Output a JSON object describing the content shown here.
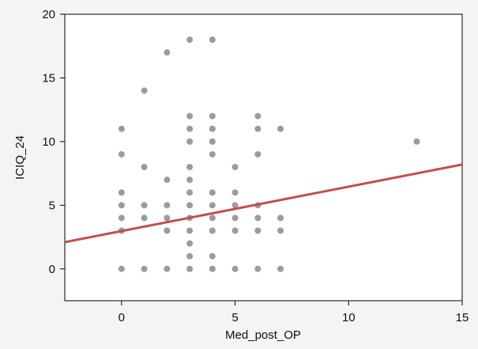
{
  "chart_data": {
    "type": "scatter",
    "title": "",
    "xlabel": "Med_post_OP",
    "ylabel": "ICIQ_24",
    "xlim": [
      -2.5,
      15
    ],
    "ylim": [
      -2.5,
      20
    ],
    "xticks": [
      0,
      5,
      10,
      15
    ],
    "yticks": [
      0,
      5,
      10,
      15,
      20
    ],
    "grid": false,
    "colors": {
      "points": "#9b9b9b",
      "fit_line": "#c0504d",
      "plot_bg": "#ffffff",
      "axis": "#000000"
    },
    "points": [
      {
        "x": 0,
        "y": 0
      },
      {
        "x": 0,
        "y": 3
      },
      {
        "x": 0,
        "y": 4
      },
      {
        "x": 0,
        "y": 5
      },
      {
        "x": 0,
        "y": 6
      },
      {
        "x": 0,
        "y": 9
      },
      {
        "x": 0,
        "y": 11
      },
      {
        "x": 1,
        "y": 0
      },
      {
        "x": 1,
        "y": 4
      },
      {
        "x": 1,
        "y": 5
      },
      {
        "x": 1,
        "y": 8
      },
      {
        "x": 1,
        "y": 14
      },
      {
        "x": 2,
        "y": 0
      },
      {
        "x": 2,
        "y": 3
      },
      {
        "x": 2,
        "y": 4
      },
      {
        "x": 2,
        "y": 5
      },
      {
        "x": 2,
        "y": 7
      },
      {
        "x": 2,
        "y": 17
      },
      {
        "x": 3,
        "y": 0
      },
      {
        "x": 3,
        "y": 1
      },
      {
        "x": 3,
        "y": 2
      },
      {
        "x": 3,
        "y": 3
      },
      {
        "x": 3,
        "y": 4
      },
      {
        "x": 3,
        "y": 5
      },
      {
        "x": 3,
        "y": 6
      },
      {
        "x": 3,
        "y": 7
      },
      {
        "x": 3,
        "y": 8
      },
      {
        "x": 3,
        "y": 10
      },
      {
        "x": 3,
        "y": 11
      },
      {
        "x": 3,
        "y": 12
      },
      {
        "x": 3,
        "y": 18
      },
      {
        "x": 4,
        "y": 0
      },
      {
        "x": 4,
        "y": 1
      },
      {
        "x": 4,
        "y": 3
      },
      {
        "x": 4,
        "y": 4
      },
      {
        "x": 4,
        "y": 5
      },
      {
        "x": 4,
        "y": 6
      },
      {
        "x": 4,
        "y": 9
      },
      {
        "x": 4,
        "y": 10
      },
      {
        "x": 4,
        "y": 11
      },
      {
        "x": 4,
        "y": 12
      },
      {
        "x": 4,
        "y": 18
      },
      {
        "x": 5,
        "y": 0
      },
      {
        "x": 5,
        "y": 3
      },
      {
        "x": 5,
        "y": 4
      },
      {
        "x": 5,
        "y": 5
      },
      {
        "x": 5,
        "y": 6
      },
      {
        "x": 5,
        "y": 8
      },
      {
        "x": 6,
        "y": 0
      },
      {
        "x": 6,
        "y": 3
      },
      {
        "x": 6,
        "y": 4
      },
      {
        "x": 6,
        "y": 5
      },
      {
        "x": 6,
        "y": 9
      },
      {
        "x": 6,
        "y": 11
      },
      {
        "x": 6,
        "y": 12
      },
      {
        "x": 7,
        "y": 0
      },
      {
        "x": 7,
        "y": 3
      },
      {
        "x": 7,
        "y": 4
      },
      {
        "x": 7,
        "y": 11
      },
      {
        "x": 13,
        "y": 10
      }
    ],
    "fit_line": {
      "x": [
        -2.5,
        15
      ],
      "y": [
        2.1,
        8.2
      ]
    }
  }
}
